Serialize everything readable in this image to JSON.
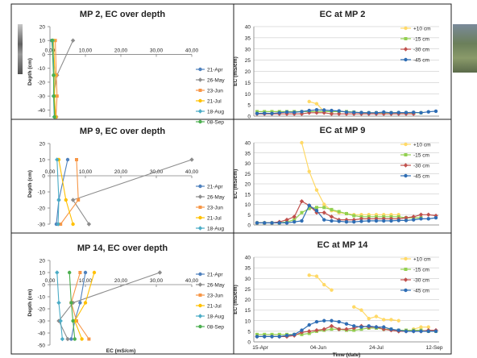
{
  "colors": {
    "frame": "#1f1f1f",
    "gridline": "#bfbfbf",
    "axis": "#808080",
    "series_depth": [
      "#4f81bd",
      "#8c8c8c",
      "#f79646",
      "#ffc000",
      "#4bacc6",
      "#4caf50"
    ],
    "series_time": [
      "#ffd966",
      "#92d050",
      "#c0504d",
      "#2e6db4"
    ]
  },
  "depth_legend": [
    "21-Apr",
    "26-May",
    "23-Jun",
    "21-Jul",
    "18-Aug",
    "08-Sep"
  ],
  "time_legend": [
    "+10 cm",
    "-15 cm",
    "-30 cm",
    "-45 cm"
  ],
  "chart_data": [
    {
      "type": "line",
      "title": "MP 2, EC over depth",
      "xlabel": "",
      "ylabel": "Depth (cm)",
      "xlim": [
        0,
        40
      ],
      "ylim": [
        -45,
        20
      ],
      "xticks": [
        "0,00",
        "10,00",
        "20,00",
        "30,00",
        "40,00"
      ],
      "yticks": [
        "20",
        "10",
        "0",
        "-10",
        "-20",
        "-30",
        "-40"
      ],
      "depths": [
        10,
        -15,
        -30,
        -45
      ],
      "series": [
        {
          "name": "21-Apr",
          "x": [
            0.5,
            1.5,
            1.2,
            1.5
          ]
        },
        {
          "name": "26-May",
          "x": [
            6.5,
            2.0,
            1.0,
            1.8
          ]
        },
        {
          "name": "23-Jun",
          "x": [
            1.5,
            1.8,
            2.0,
            1.7
          ]
        },
        {
          "name": "21-Jul",
          "x": [
            1.0,
            1.4,
            1.3,
            1.6
          ]
        },
        {
          "name": "18-Aug",
          "x": [
            0.8,
            1.1,
            1.0,
            1.2
          ]
        },
        {
          "name": "08-Sep",
          "x": [
            0.6,
            1.0,
            1.1,
            1.3
          ]
        }
      ]
    },
    {
      "type": "line",
      "title": "EC at MP 2",
      "xlabel": "",
      "ylabel": "EC (mS/cm)",
      "ylim": [
        0,
        40
      ],
      "yticks": [
        "0",
        "5",
        "10",
        "15",
        "20",
        "25",
        "30",
        "35",
        "40"
      ],
      "x": [
        0,
        6,
        12,
        18,
        24,
        30,
        36,
        42,
        48,
        54,
        60,
        66,
        72,
        78,
        84,
        90,
        96,
        102,
        108,
        114,
        120,
        126,
        132,
        138,
        144
      ],
      "series": [
        {
          "name": "+10 cm",
          "values": [
            null,
            null,
            null,
            null,
            null,
            null,
            null,
            6.5,
            5.5,
            2,
            null,
            null,
            null,
            null,
            null,
            null,
            null,
            null,
            null,
            null,
            null,
            null,
            null,
            null,
            null
          ]
        },
        {
          "name": "-15 cm",
          "values": [
            2,
            2,
            2,
            2,
            2,
            2,
            2,
            2,
            2,
            2,
            2,
            2,
            2,
            1.8,
            1.5,
            1.5,
            1.5,
            1.5,
            1.5,
            1.5,
            1.5,
            1.5,
            1.5,
            null,
            null
          ]
        },
        {
          "name": "-30 cm",
          "values": [
            1,
            1,
            1,
            1,
            1,
            1,
            1,
            1.5,
            1.5,
            1.5,
            1,
            1,
            1,
            1,
            1,
            1,
            1,
            1,
            1,
            1,
            1,
            1,
            null,
            null,
            null
          ]
        },
        {
          "name": "-45 cm",
          "values": [
            1.2,
            1.3,
            1.2,
            1.5,
            1.8,
            1.7,
            2.0,
            2.5,
            2.8,
            2.7,
            2.5,
            2.3,
            1.8,
            1.7,
            1.6,
            1.5,
            1.5,
            1.8,
            1.5,
            1.6,
            1.6,
            1.7,
            1.5,
            1.9,
            2.2
          ]
        }
      ]
    },
    {
      "type": "line",
      "title": "MP 9, EC over depth",
      "xlabel": "",
      "ylabel": "Depth (cm)",
      "xlim": [
        0,
        40
      ],
      "ylim": [
        -30,
        20
      ],
      "xticks": [
        "0,00",
        "10,00",
        "20,00",
        "30,00",
        "40,00"
      ],
      "yticks": [
        "20",
        "10",
        "0",
        "-10",
        "-20",
        "-30"
      ],
      "depths": [
        10,
        -15,
        -30
      ],
      "series": [
        {
          "name": "21-Apr",
          "x": [
            5.0,
            2.5,
            1.8
          ]
        },
        {
          "name": "26-May",
          "x": [
            40.0,
            6.5,
            11.0
          ]
        },
        {
          "name": "23-Jun",
          "x": [
            7.5,
            8.0,
            3.0
          ]
        },
        {
          "name": "21-Jul",
          "x": [
            2.5,
            4.5,
            6.5
          ]
        },
        {
          "name": "18-Aug",
          "x": [
            2.0,
            2.5,
            2.3
          ]
        }
      ]
    },
    {
      "type": "line",
      "title": "EC at MP 9",
      "xlabel": "",
      "ylabel": "EC (mS/cm)",
      "ylim": [
        0,
        40
      ],
      "yticks": [
        "0",
        "5",
        "10",
        "15",
        "20",
        "25",
        "30",
        "35",
        "40"
      ],
      "x": [
        0,
        6,
        12,
        18,
        24,
        30,
        36,
        42,
        48,
        54,
        60,
        66,
        72,
        78,
        84,
        90,
        96,
        102,
        108,
        114,
        120,
        126,
        132,
        138,
        144
      ],
      "series": [
        {
          "name": "+10 cm",
          "values": [
            null,
            null,
            null,
            null,
            null,
            null,
            40,
            26,
            17,
            10,
            7,
            6,
            5.5,
            5,
            5,
            5,
            5,
            5,
            5,
            5,
            null,
            null,
            null,
            null,
            null
          ]
        },
        {
          "name": "-15 cm",
          "values": [
            1,
            1,
            1,
            1,
            1.5,
            2.5,
            6,
            8,
            8.5,
            8.5,
            7.5,
            6.5,
            5.5,
            4.5,
            4,
            4,
            4,
            4,
            4,
            4,
            3.5,
            3.5,
            3.5,
            null,
            null
          ]
        },
        {
          "name": "-30 cm",
          "values": [
            1,
            1,
            1,
            1.5,
            2.5,
            4,
            11.5,
            9.5,
            6,
            6,
            4,
            2.5,
            2.5,
            2.5,
            3,
            3,
            3,
            3,
            3,
            3,
            3.5,
            4,
            5,
            5,
            4.5
          ]
        },
        {
          "name": "-45 cm",
          "values": [
            1,
            1,
            1,
            1,
            1,
            1.5,
            2,
            9.5,
            7,
            2.5,
            2,
            1.8,
            1.5,
            1.5,
            1.8,
            2,
            2,
            2,
            2,
            2.2,
            2.2,
            2.5,
            3,
            3,
            3.5
          ]
        }
      ]
    },
    {
      "type": "line",
      "title": "MP 14, EC over depth",
      "xlabel": "EC (mS/cm)",
      "ylabel": "Depth (cm)",
      "xlim": [
        0,
        40
      ],
      "ylim": [
        -50,
        20
      ],
      "xticks": [
        "0,00",
        "10,00",
        "20,00",
        "30,00",
        "40,00"
      ],
      "yticks": [
        "20",
        "10",
        "0",
        "-10",
        "-20",
        "-30",
        "-40",
        "-50"
      ],
      "depths": [
        10,
        -15,
        -30,
        -45
      ],
      "series": [
        {
          "name": "21-Apr",
          "x": [
            10.0,
            8.5,
            7.0,
            6.0
          ]
        },
        {
          "name": "26-May",
          "x": [
            31.0,
            6.5,
            2.5,
            5.0
          ]
        },
        {
          "name": "23-Jun",
          "x": [
            8.5,
            6.0,
            7.5,
            11.0
          ]
        },
        {
          "name": "21-Jul",
          "x": [
            12.5,
            10.0,
            7.0,
            9.0
          ]
        },
        {
          "name": "18-Aug",
          "x": [
            2.0,
            2.5,
            3.0,
            3.5
          ]
        },
        {
          "name": "08-Sep",
          "x": [
            5.5,
            6.0,
            6.5,
            7.0
          ]
        }
      ]
    },
    {
      "type": "line",
      "title": "EC at MP 14",
      "xlabel": "Time (date)",
      "ylabel": "EC (mS/cm)",
      "ylim": [
        0,
        40
      ],
      "yticks": [
        "0",
        "5",
        "10",
        "15",
        "20",
        "25",
        "30",
        "35",
        "40"
      ],
      "xticks": [
        "15-Apr",
        "04-Jun",
        "24-Jul",
        "12-Sep"
      ],
      "x": [
        0,
        6,
        12,
        18,
        24,
        30,
        36,
        42,
        48,
        54,
        60,
        66,
        72,
        78,
        84,
        90,
        96,
        102,
        108,
        114,
        120,
        126,
        132,
        138,
        144
      ],
      "series": [
        {
          "name": "+10 cm",
          "values": [
            null,
            null,
            null,
            null,
            null,
            null,
            null,
            31.5,
            31,
            27,
            24.5,
            null,
            null,
            16.5,
            15,
            11,
            12,
            10.5,
            10.5,
            10,
            null,
            6,
            7,
            7,
            null
          ]
        },
        {
          "name": "-15 cm",
          "values": [
            3.5,
            3.5,
            3.5,
            3.5,
            3.5,
            3.5,
            3.5,
            4,
            5,
            5.5,
            6,
            6,
            5.5,
            5.5,
            6,
            6.5,
            6.5,
            6,
            6,
            5.5,
            5.5,
            5.5,
            5.5,
            5,
            5
          ]
        },
        {
          "name": "-30 cm",
          "values": [
            2.5,
            2.5,
            2.5,
            2.5,
            2.5,
            3,
            4.5,
            5,
            5.5,
            6,
            7.5,
            6,
            6,
            6.5,
            7.5,
            7,
            7,
            6,
            5.5,
            5,
            5,
            5,
            5,
            5.5,
            5.5
          ]
        },
        {
          "name": "-45 cm",
          "values": [
            2.5,
            2.5,
            2.5,
            2.5,
            3,
            3.5,
            5.5,
            8,
            9.5,
            10,
            10,
            9.5,
            8.5,
            7.5,
            7,
            7.5,
            7,
            7,
            6,
            5.5,
            5,
            5,
            5,
            5,
            5
          ]
        }
      ]
    }
  ]
}
